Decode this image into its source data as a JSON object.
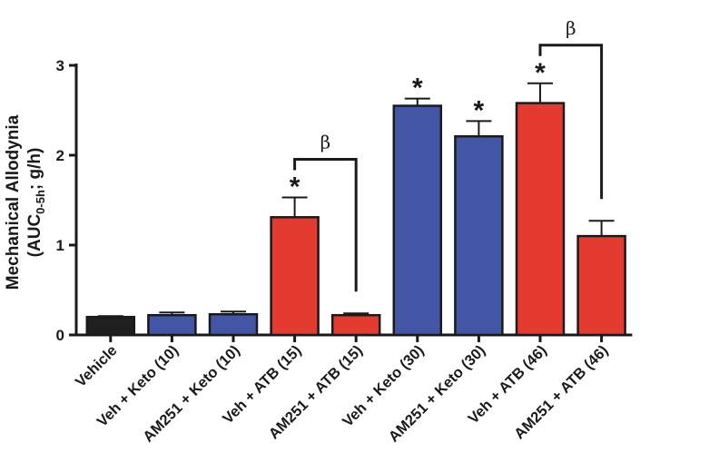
{
  "chart_data": {
    "type": "bar",
    "ylabel_line1": "Mechanical Allodynia",
    "ylabel_line2_prefix": "(AUC",
    "ylabel_line2_sub": "0-5h",
    "ylabel_line2_suffix": "; g/h)",
    "ylim": [
      0,
      3
    ],
    "yticks": [
      "0",
      "1",
      "2",
      "3"
    ],
    "categories": [
      "Vehicle",
      "Veh + Keto (10)",
      "AM251 + Keto (10)",
      "Veh + ATB (15)",
      "AM251 + ATB (15)",
      "Veh + Keto (30)",
      "AM251 + Keto (30)",
      "Veh + ATB (46)",
      "AM251 + ATB (46)"
    ],
    "values": [
      0.2,
      0.22,
      0.23,
      1.31,
      0.22,
      2.55,
      2.21,
      2.58,
      1.1
    ],
    "errors": [
      0.01,
      0.03,
      0.03,
      0.22,
      0.02,
      0.08,
      0.17,
      0.22,
      0.17
    ],
    "colors": [
      "#1f1f1f",
      "#4356a6",
      "#4356a6",
      "#e43b31",
      "#e43b31",
      "#4356a6",
      "#4356a6",
      "#e43b31",
      "#e43b31"
    ],
    "significance_stars": [
      3,
      5,
      6,
      7
    ],
    "star_symbol": "*",
    "brackets": [
      {
        "from": 3,
        "to": 4,
        "symbol": "β"
      },
      {
        "from": 7,
        "to": 8,
        "symbol": "β"
      }
    ]
  }
}
